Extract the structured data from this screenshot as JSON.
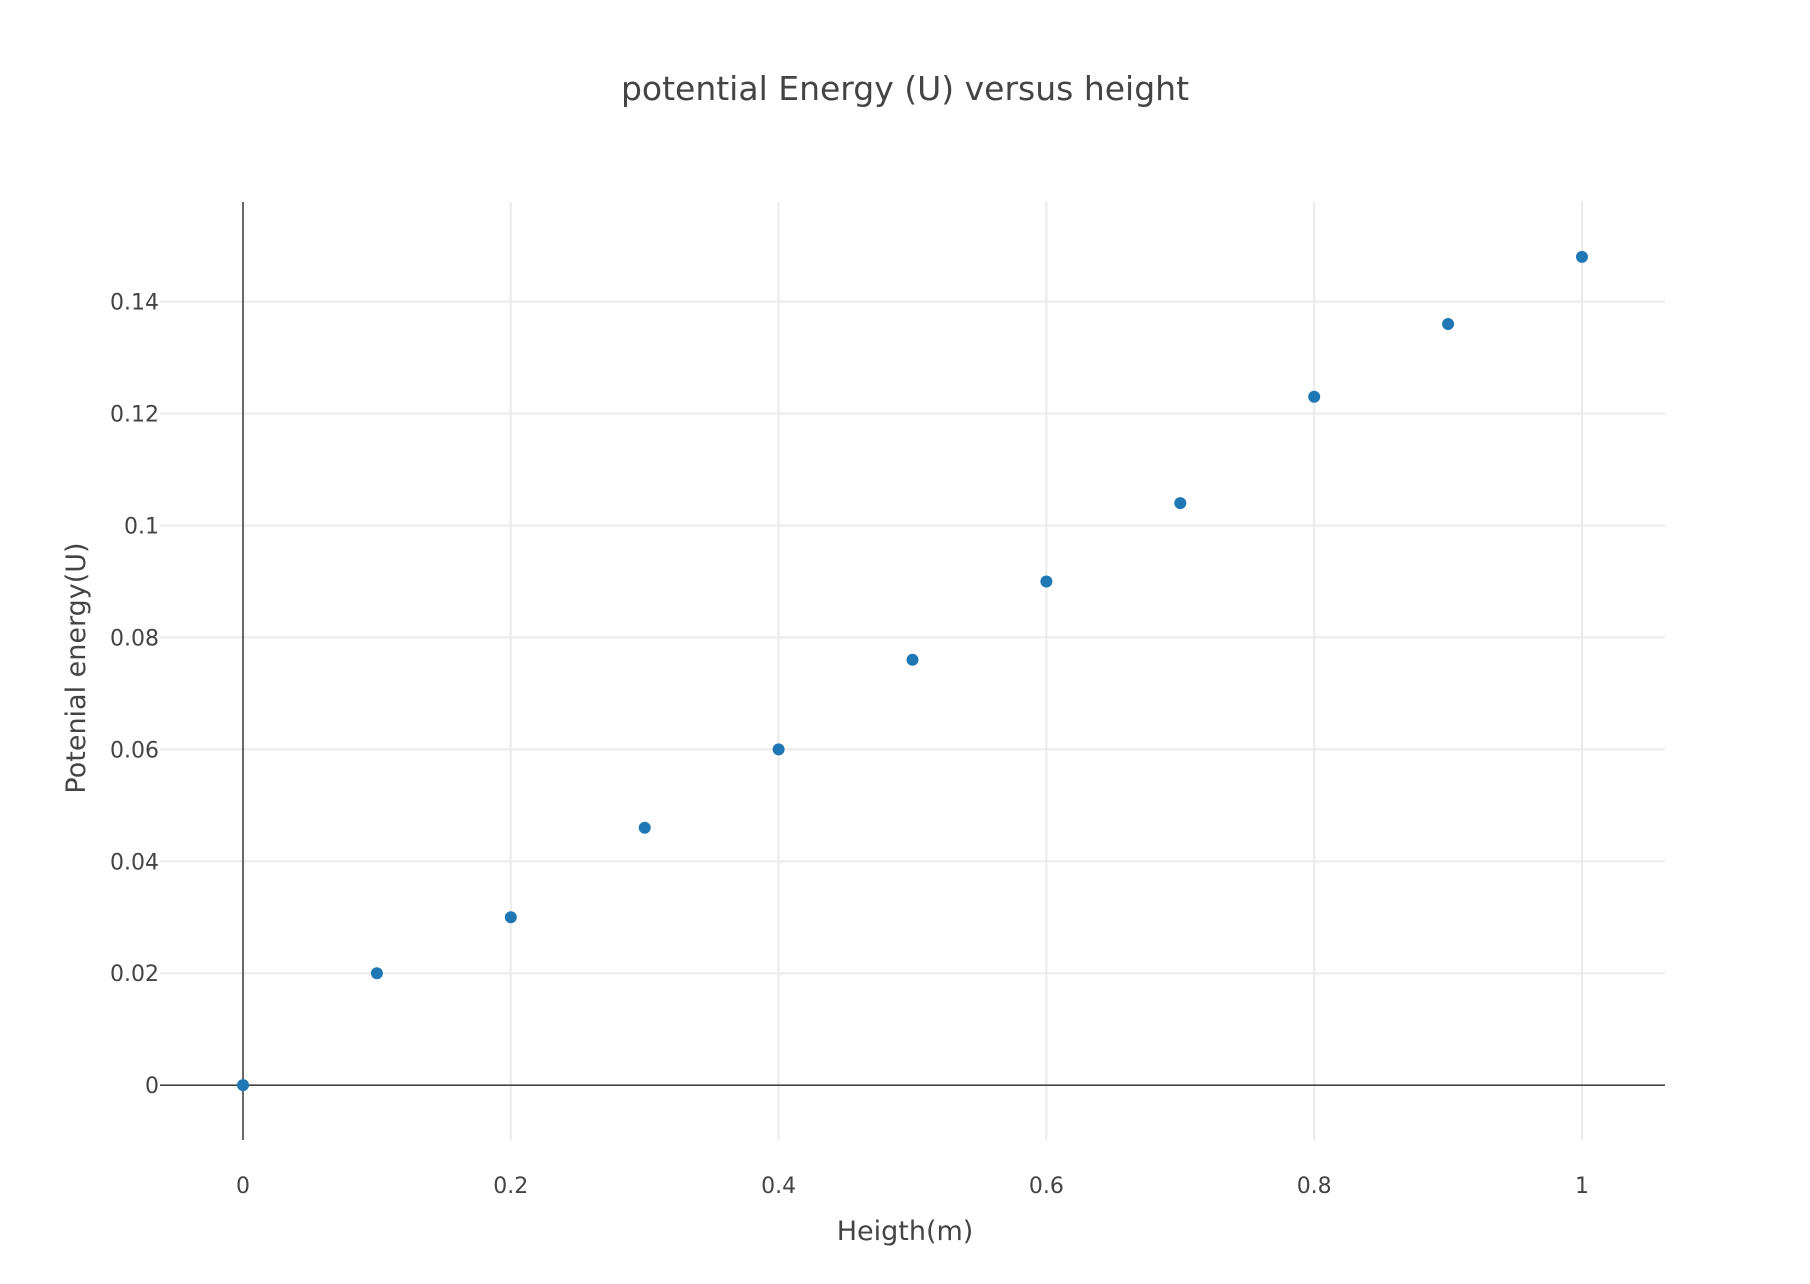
{
  "chart_data": {
    "type": "scatter",
    "title": "potential Energy (U) versus height",
    "xlabel": "Heigth(m)",
    "ylabel": "Potenial energy(U)",
    "x": [
      0,
      0.1,
      0.2,
      0.3,
      0.4,
      0.5,
      0.6,
      0.7,
      0.8,
      0.9,
      1.0
    ],
    "y": [
      0,
      0.02,
      0.03,
      0.046,
      0.06,
      0.076,
      0.09,
      0.104,
      0.123,
      0.136,
      0.148
    ],
    "xlim": [
      -0.062,
      1.062
    ],
    "ylim": [
      -0.0098,
      0.1578
    ],
    "x_ticks": [
      0,
      0.2,
      0.4,
      0.6,
      0.8,
      1
    ],
    "x_tick_labels": [
      "0",
      "0.2",
      "0.4",
      "0.6",
      "0.8",
      "1"
    ],
    "y_ticks": [
      0,
      0.02,
      0.04,
      0.06,
      0.08,
      0.1,
      0.12,
      0.14
    ],
    "y_tick_labels": [
      "0",
      "0.02",
      "0.04",
      "0.06",
      "0.08",
      "0.1",
      "0.12",
      "0.14"
    ],
    "grid": true,
    "legend": "none",
    "marker_color": "#1f77b4"
  }
}
